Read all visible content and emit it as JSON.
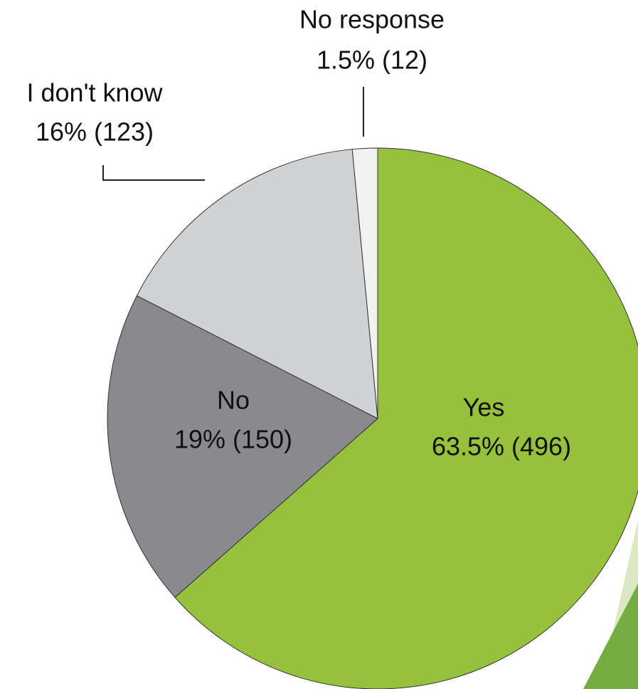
{
  "chart_data": {
    "type": "pie",
    "categories": [
      "Yes",
      "No",
      "I don't know",
      "No response"
    ],
    "values": [
      63.5,
      19,
      16,
      1.5
    ],
    "value_labels": [
      "63.5% (496)",
      "19% (150)",
      "16% (123)",
      "1.5% (12)"
    ],
    "colors": [
      "#95c13d",
      "#8a898e",
      "#d1d2d4",
      "#f1f1f2"
    ]
  }
}
